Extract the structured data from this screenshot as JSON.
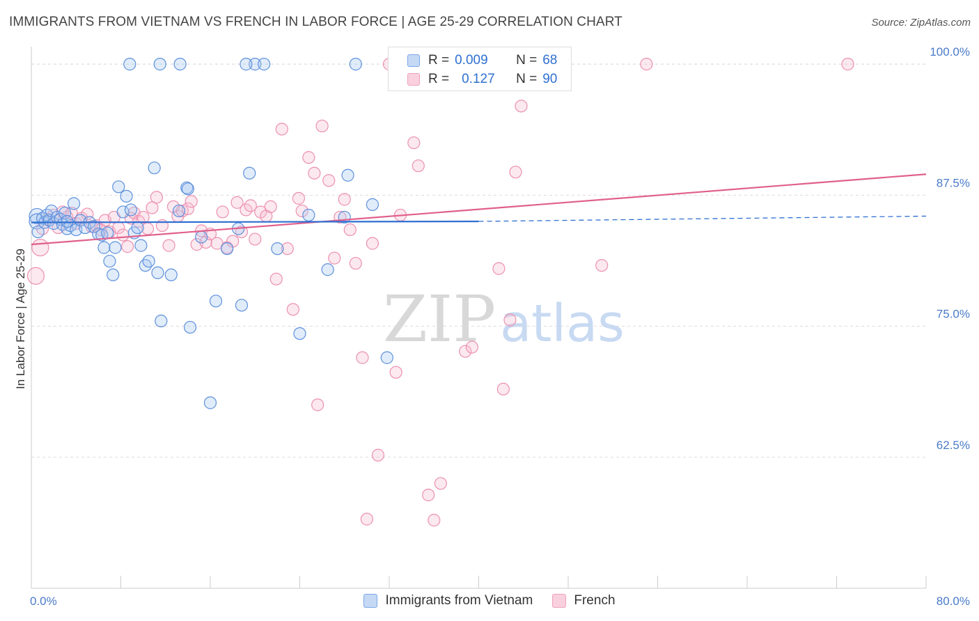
{
  "title": "IMMIGRANTS FROM VIETNAM VS FRENCH IN LABOR FORCE | AGE 25-29 CORRELATION CHART",
  "source": "Source: ZipAtlas.com",
  "watermark": {
    "zip": "ZIP",
    "atlas": "atlas"
  },
  "legend": {
    "r_label": "R =",
    "n_label": "N =",
    "rows": [
      {
        "r": "0.009",
        "n": "68"
      },
      {
        "r": "0.127",
        "n": "90"
      }
    ]
  },
  "chart_data": {
    "type": "scatter",
    "title": "IMMIGRANTS FROM VIETNAM VS FRENCH IN LABOR FORCE | AGE 25-29 CORRELATION CHART",
    "xlabel": "",
    "ylabel": "In Labor Force | Age 25-29",
    "xlim": [
      0,
      80
    ],
    "ylim": [
      50,
      102
    ],
    "x_tick_labels": [
      "0.0%",
      "80.0%"
    ],
    "y_ticks": [
      62.5,
      75.0,
      87.5,
      100.0
    ],
    "y_tick_labels": [
      "62.5%",
      "75.0%",
      "87.5%",
      "100.0%"
    ],
    "grid": true,
    "legend_position": "top-center",
    "colors": {
      "vietnam": "#7aa6e8",
      "vietnam_line": "#2f6fd1",
      "french": "#f0a0bb",
      "french_line": "#e0608c"
    },
    "series": [
      {
        "name": "Immigrants from Vietnam",
        "r": 0.009,
        "n": 68,
        "trend": {
          "x0": 0,
          "y0": 84.9,
          "x1": 40,
          "y1": 85.0,
          "dash_to_x": 80,
          "dash_to_y": 85.5
        },
        "points": [
          [
            0.5,
            85.5
          ],
          [
            0.5,
            85.0
          ],
          [
            0.6,
            84.0
          ],
          [
            1.0,
            85.3
          ],
          [
            1.2,
            84.9
          ],
          [
            1.4,
            85.6
          ],
          [
            1.6,
            85.1
          ],
          [
            1.8,
            86.0
          ],
          [
            2.0,
            84.8
          ],
          [
            2.3,
            85.4
          ],
          [
            2.6,
            85.2
          ],
          [
            2.8,
            84.7
          ],
          [
            3.0,
            85.8
          ],
          [
            3.2,
            84.3
          ],
          [
            3.5,
            84.6
          ],
          [
            3.8,
            86.7
          ],
          [
            4.0,
            84.2
          ],
          [
            4.4,
            85.1
          ],
          [
            4.8,
            84.4
          ],
          [
            5.2,
            84.9
          ],
          [
            5.6,
            84.5
          ],
          [
            6.0,
            83.8
          ],
          [
            6.3,
            83.7
          ],
          [
            6.5,
            82.5
          ],
          [
            6.8,
            83.9
          ],
          [
            7.0,
            81.2
          ],
          [
            7.3,
            79.9
          ],
          [
            7.5,
            82.5
          ],
          [
            7.8,
            88.3
          ],
          [
            8.2,
            85.9
          ],
          [
            8.5,
            87.4
          ],
          [
            8.9,
            86.1
          ],
          [
            9.2,
            83.9
          ],
          [
            9.5,
            84.4
          ],
          [
            9.8,
            82.7
          ],
          [
            10.2,
            80.8
          ],
          [
            10.5,
            81.2
          ],
          [
            11.0,
            90.1
          ],
          [
            11.3,
            80.1
          ],
          [
            11.6,
            75.5
          ],
          [
            12.5,
            79.9
          ],
          [
            13.2,
            86.0
          ],
          [
            13.9,
            88.2
          ],
          [
            14.0,
            88.1
          ],
          [
            14.2,
            74.9
          ],
          [
            15.2,
            83.5
          ],
          [
            16.0,
            67.7
          ],
          [
            16.5,
            77.4
          ],
          [
            17.5,
            82.4
          ],
          [
            18.5,
            84.3
          ],
          [
            18.8,
            77.0
          ],
          [
            19.5,
            89.6
          ],
          [
            20.0,
            100.0
          ],
          [
            20.8,
            100.0
          ],
          [
            22.0,
            82.4
          ],
          [
            24.0,
            74.3
          ],
          [
            24.8,
            85.6
          ],
          [
            26.5,
            80.4
          ],
          [
            28.0,
            85.4
          ],
          [
            28.3,
            89.4
          ],
          [
            29.0,
            100.0
          ],
          [
            30.5,
            86.6
          ],
          [
            31.8,
            72.0
          ],
          [
            8.8,
            100.0
          ],
          [
            11.5,
            100.0
          ],
          [
            13.3,
            100.0
          ],
          [
            19.2,
            100.0
          ],
          [
            3.2,
            85.0
          ]
        ]
      },
      {
        "name": "French",
        "r": 0.127,
        "n": 90,
        "trend": {
          "x0": 0,
          "y0": 82.8,
          "x1": 80,
          "y1": 89.5
        },
        "points": [
          [
            0.4,
            79.8
          ],
          [
            0.8,
            82.5
          ],
          [
            1.0,
            84.3
          ],
          [
            1.5,
            85.2
          ],
          [
            2.0,
            85.6
          ],
          [
            2.4,
            84.4
          ],
          [
            2.8,
            85.9
          ],
          [
            3.2,
            85.4
          ],
          [
            3.6,
            85.8
          ],
          [
            4.0,
            84.8
          ],
          [
            4.5,
            85.3
          ],
          [
            5.0,
            85.7
          ],
          [
            5.4,
            84.5
          ],
          [
            5.8,
            84.6
          ],
          [
            6.2,
            84.2
          ],
          [
            6.6,
            85.1
          ],
          [
            7.0,
            84.0
          ],
          [
            7.4,
            85.4
          ],
          [
            7.8,
            84.4
          ],
          [
            8.2,
            83.7
          ],
          [
            8.6,
            82.6
          ],
          [
            8.9,
            85.3
          ],
          [
            9.2,
            85.8
          ],
          [
            9.6,
            85.0
          ],
          [
            10.0,
            85.4
          ],
          [
            10.4,
            84.3
          ],
          [
            10.8,
            86.3
          ],
          [
            11.2,
            87.3
          ],
          [
            11.7,
            84.6
          ],
          [
            12.3,
            82.7
          ],
          [
            12.7,
            86.4
          ],
          [
            13.1,
            85.5
          ],
          [
            13.5,
            86.0
          ],
          [
            14.0,
            86.2
          ],
          [
            14.3,
            86.9
          ],
          [
            14.8,
            82.8
          ],
          [
            15.2,
            84.1
          ],
          [
            15.6,
            83.0
          ],
          [
            16.0,
            83.8
          ],
          [
            16.6,
            82.9
          ],
          [
            17.1,
            85.9
          ],
          [
            17.5,
            82.5
          ],
          [
            18.0,
            83.1
          ],
          [
            18.4,
            86.8
          ],
          [
            18.8,
            84.0
          ],
          [
            19.2,
            86.1
          ],
          [
            19.6,
            86.5
          ],
          [
            20.0,
            83.3
          ],
          [
            20.5,
            85.9
          ],
          [
            21.0,
            85.5
          ],
          [
            21.4,
            86.4
          ],
          [
            21.9,
            79.5
          ],
          [
            22.4,
            93.8
          ],
          [
            22.9,
            82.4
          ],
          [
            23.4,
            76.6
          ],
          [
            23.9,
            87.2
          ],
          [
            24.2,
            86.0
          ],
          [
            24.8,
            91.1
          ],
          [
            25.3,
            89.6
          ],
          [
            25.6,
            67.5
          ],
          [
            26.0,
            94.1
          ],
          [
            26.6,
            88.9
          ],
          [
            27.1,
            81.5
          ],
          [
            27.6,
            85.4
          ],
          [
            28.0,
            87.1
          ],
          [
            28.5,
            84.2
          ],
          [
            29.6,
            72.0
          ],
          [
            30.5,
            82.9
          ],
          [
            31.0,
            62.7
          ],
          [
            30.0,
            56.6
          ],
          [
            32.6,
            70.6
          ],
          [
            33.0,
            85.6
          ],
          [
            34.2,
            92.5
          ],
          [
            34.6,
            90.3
          ],
          [
            35.5,
            58.9
          ],
          [
            36.0,
            56.5
          ],
          [
            36.6,
            60.0
          ],
          [
            38.8,
            72.6
          ],
          [
            39.4,
            73.0
          ],
          [
            41.8,
            80.5
          ],
          [
            42.2,
            69.0
          ],
          [
            42.8,
            75.6
          ],
          [
            43.3,
            89.7
          ],
          [
            43.8,
            96.0
          ],
          [
            51.0,
            80.8
          ],
          [
            47.0,
            100.0
          ],
          [
            55.0,
            100.0
          ],
          [
            73.0,
            100.0
          ],
          [
            32.0,
            100.0
          ],
          [
            29.0,
            81.0
          ]
        ]
      }
    ]
  }
}
